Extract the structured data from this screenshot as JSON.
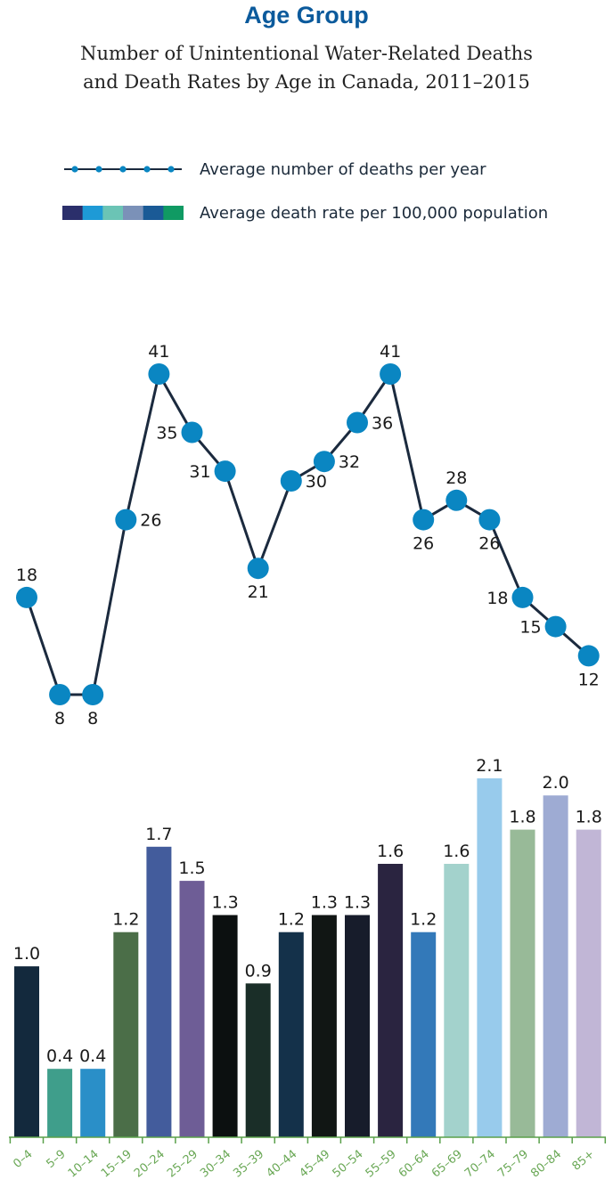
{
  "header": {
    "title": "Age Group",
    "subtitle_line1": "Number of Unintentional Water-Related Deaths",
    "subtitle_line2": "and Death Rates by Age in Canada, 2011–2015"
  },
  "chart_data": {
    "type": "line+bar",
    "categories": [
      "0–4",
      "5–9",
      "10–14",
      "15–19",
      "20–24",
      "25–29",
      "30–34",
      "35–39",
      "40–44",
      "45–49",
      "50–54",
      "55–59",
      "60–64",
      "65–69",
      "70–74",
      "75–79",
      "80–84",
      "85+"
    ],
    "series": [
      {
        "name": "Average number of deaths per year",
        "type": "line",
        "values": [
          18,
          8,
          8,
          26,
          41,
          35,
          31,
          21,
          30,
          32,
          36,
          41,
          26,
          28,
          26,
          18,
          15,
          12
        ],
        "labels": [
          "18",
          "8",
          "8",
          "26",
          "41",
          "35",
          "31",
          "21",
          "30",
          "32",
          "36",
          "41",
          "26",
          "28",
          "26",
          "18",
          "15",
          "12"
        ],
        "color": "#0a86c2",
        "line_color": "#1b2a3e"
      },
      {
        "name": "Average death rate per 100,000 population",
        "type": "bar",
        "values": [
          1.0,
          0.4,
          0.4,
          1.2,
          1.7,
          1.5,
          1.3,
          0.9,
          1.2,
          1.3,
          1.3,
          1.6,
          1.2,
          1.6,
          2.1,
          1.8,
          2.0,
          1.8
        ],
        "labels": [
          "1.0",
          "0.4",
          "0.4",
          "1.2",
          "1.7",
          "1.5",
          "1.3",
          "0.9",
          "1.2",
          "1.3",
          "1.3",
          "1.6",
          "1.2",
          "1.6",
          "2.1",
          "1.8",
          "2.0",
          "1.8"
        ],
        "colors": [
          "#13293d",
          "#3f9e8b",
          "#2a8fc8",
          "#4b6e48",
          "#435c9c",
          "#6e5d96",
          "#0c1010",
          "#1a2e28",
          "#14314a",
          "#111614",
          "#171c2b",
          "#2a2440",
          "#3379b9",
          "#a3d2cc",
          "#98cbec",
          "#98ba98",
          "#9eabd3",
          "#c1b6d6"
        ]
      }
    ],
    "legend_swatch_colors": [
      "#2b2f6b",
      "#1e9ad6",
      "#6bc4b5",
      "#7b91b8",
      "#1a5a96",
      "#109a63"
    ],
    "axis_color": "#5aa04a",
    "tick_label_color": "#6aa856",
    "line_ylim": [
      0,
      41
    ],
    "bar_ylim": [
      0,
      2.1
    ],
    "legend": "top-left"
  }
}
